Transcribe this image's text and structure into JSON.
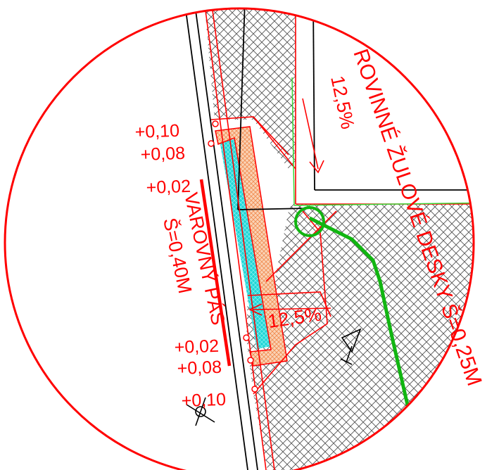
{
  "drawing": {
    "colors": {
      "frame": "#ff0000",
      "outline": "#000000",
      "paving_hatch": "#555555",
      "tactile_strip": "#21d6d6",
      "orange_band": "#f4a16e",
      "green_line": "#11b511",
      "bright_green": "#38d838"
    },
    "labels": {
      "level_010_top": "+0,10",
      "level_008_top": "+0,08",
      "level_002_top": "+0,02",
      "warning_strip": "VAROVNÝ PÁS",
      "warning_strip_width": "Š=0,40M",
      "level_002_bottom": "+0,02",
      "level_008_bottom": "+0,08",
      "level_010_bottom": "+0,10",
      "slope_top": "12,5%",
      "slope_middle": "12,5%",
      "flat_slabs": "ROVINNÉ ŽULOVÉ DESKY Š=0,25M"
    }
  }
}
